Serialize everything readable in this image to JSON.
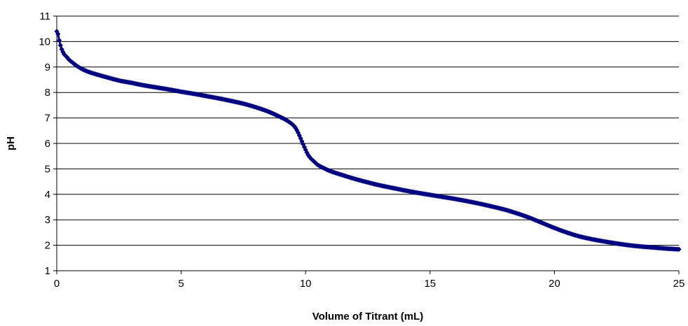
{
  "chart_data": {
    "type": "scatter",
    "title": "",
    "xlabel": "Volume of Titrant (mL)",
    "ylabel": "pH",
    "xlim": [
      0,
      25
    ],
    "ylim": [
      1,
      11
    ],
    "x_ticks": [
      "0",
      "5",
      "10",
      "15",
      "20",
      "25"
    ],
    "y_ticks": [
      "1",
      "2",
      "3",
      "4",
      "5",
      "6",
      "7",
      "8",
      "9",
      "10",
      "11"
    ],
    "grid": "horizontal",
    "legend": "none",
    "marker_color": "#000080",
    "marker_shape": "diamond",
    "series": [
      {
        "x": [
          0.0,
          0.05,
          0.1,
          0.15,
          0.2,
          0.3,
          0.4,
          0.5,
          0.6,
          0.8,
          1.0,
          1.25,
          1.5,
          2.0,
          2.5,
          3.0,
          3.5,
          4.0,
          4.5,
          5.0,
          5.5,
          6.0,
          6.5,
          7.0,
          7.5,
          8.0,
          8.5,
          9.0,
          9.25,
          9.5,
          9.6,
          9.7,
          9.8,
          9.9,
          10.0,
          10.1,
          10.2,
          10.35,
          10.5,
          10.75,
          11.0,
          11.5,
          12.0,
          12.5,
          13.0,
          13.5,
          14.0,
          14.5,
          15.0,
          15.5,
          16.0,
          16.5,
          17.0,
          17.5,
          18.0,
          18.5,
          19.0,
          19.5,
          20.0,
          20.5,
          21.0,
          21.5,
          22.0,
          22.5,
          23.0,
          23.5,
          24.0,
          24.5,
          25.0
        ],
        "y": [
          10.4,
          10.3,
          10.05,
          9.85,
          9.7,
          9.5,
          9.4,
          9.28,
          9.2,
          9.05,
          8.93,
          8.82,
          8.74,
          8.6,
          8.47,
          8.38,
          8.28,
          8.2,
          8.12,
          8.03,
          7.95,
          7.86,
          7.77,
          7.67,
          7.56,
          7.42,
          7.25,
          7.03,
          6.9,
          6.72,
          6.6,
          6.42,
          6.2,
          5.97,
          5.75,
          5.55,
          5.42,
          5.28,
          5.15,
          5.02,
          4.91,
          4.75,
          4.6,
          4.47,
          4.35,
          4.25,
          4.15,
          4.06,
          3.98,
          3.9,
          3.82,
          3.73,
          3.63,
          3.52,
          3.4,
          3.25,
          3.08,
          2.88,
          2.68,
          2.5,
          2.35,
          2.24,
          2.15,
          2.07,
          2.0,
          1.95,
          1.91,
          1.87,
          1.84
        ]
      }
    ]
  }
}
